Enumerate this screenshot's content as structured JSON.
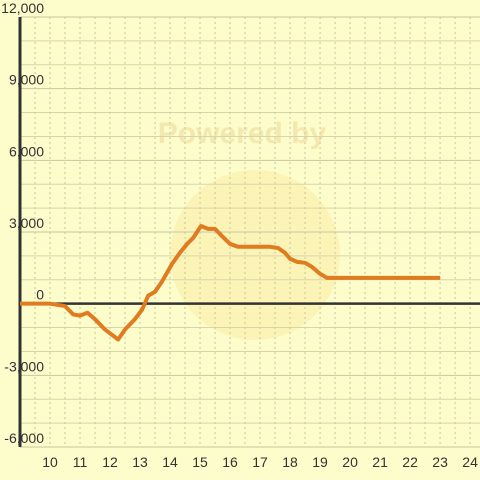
{
  "chart_data": {
    "type": "line",
    "watermark": "Powered by",
    "x": [
      9,
      10,
      10.5,
      10.77,
      11,
      11.25,
      11.5,
      11.83,
      12.27,
      12.5,
      12.83,
      13.07,
      13.27,
      13.5,
      13.73,
      14.07,
      14.33,
      14.57,
      14.77,
      15.03,
      15.27,
      15.5,
      15.73,
      16,
      16.27,
      17.33,
      17.6,
      17.83,
      18,
      18.23,
      18.5,
      18.73,
      19,
      19.23,
      23
    ],
    "series": [
      {
        "color": "#e07b20",
        "values": [
          0,
          0,
          -100,
          -450,
          -500,
          -380,
          -650,
          -1080,
          -1500,
          -1080,
          -650,
          -250,
          330,
          500,
          920,
          1670,
          2130,
          2500,
          2750,
          3250,
          3130,
          3130,
          2830,
          2500,
          2380,
          2380,
          2330,
          2130,
          1880,
          1750,
          1710,
          1540,
          1250,
          1080,
          1080
        ]
      }
    ],
    "xlim": [
      9,
      24.33
    ],
    "ylim": [
      -6000,
      12000
    ],
    "xticks": [
      10,
      11,
      12,
      13,
      14,
      15,
      16,
      17,
      18,
      19,
      20,
      21,
      22,
      23,
      24
    ],
    "yticks": [
      {
        "value": -6000,
        "label": "-6,000"
      },
      {
        "value": -3000,
        "label": "-3,000"
      },
      0,
      {
        "value": 3000,
        "label": "3,000"
      },
      {
        "value": 6000,
        "label": "6,000"
      },
      {
        "value": 9000,
        "label": "9,000"
      },
      {
        "value": 12000,
        "label": "12,000"
      }
    ],
    "x_minor_ticks": [
      9.5,
      10.5,
      11.5,
      12.5,
      13.5,
      14.5,
      15.5,
      16.5,
      17.5,
      18.5,
      19.5,
      20.5,
      21.5,
      22.5,
      23.5
    ],
    "y_minor_ticks": [
      -5000,
      -4000,
      -2000,
      -1000,
      1000,
      2000,
      4000,
      5000,
      7000,
      8000,
      10000,
      11000
    ],
    "grid": true
  }
}
